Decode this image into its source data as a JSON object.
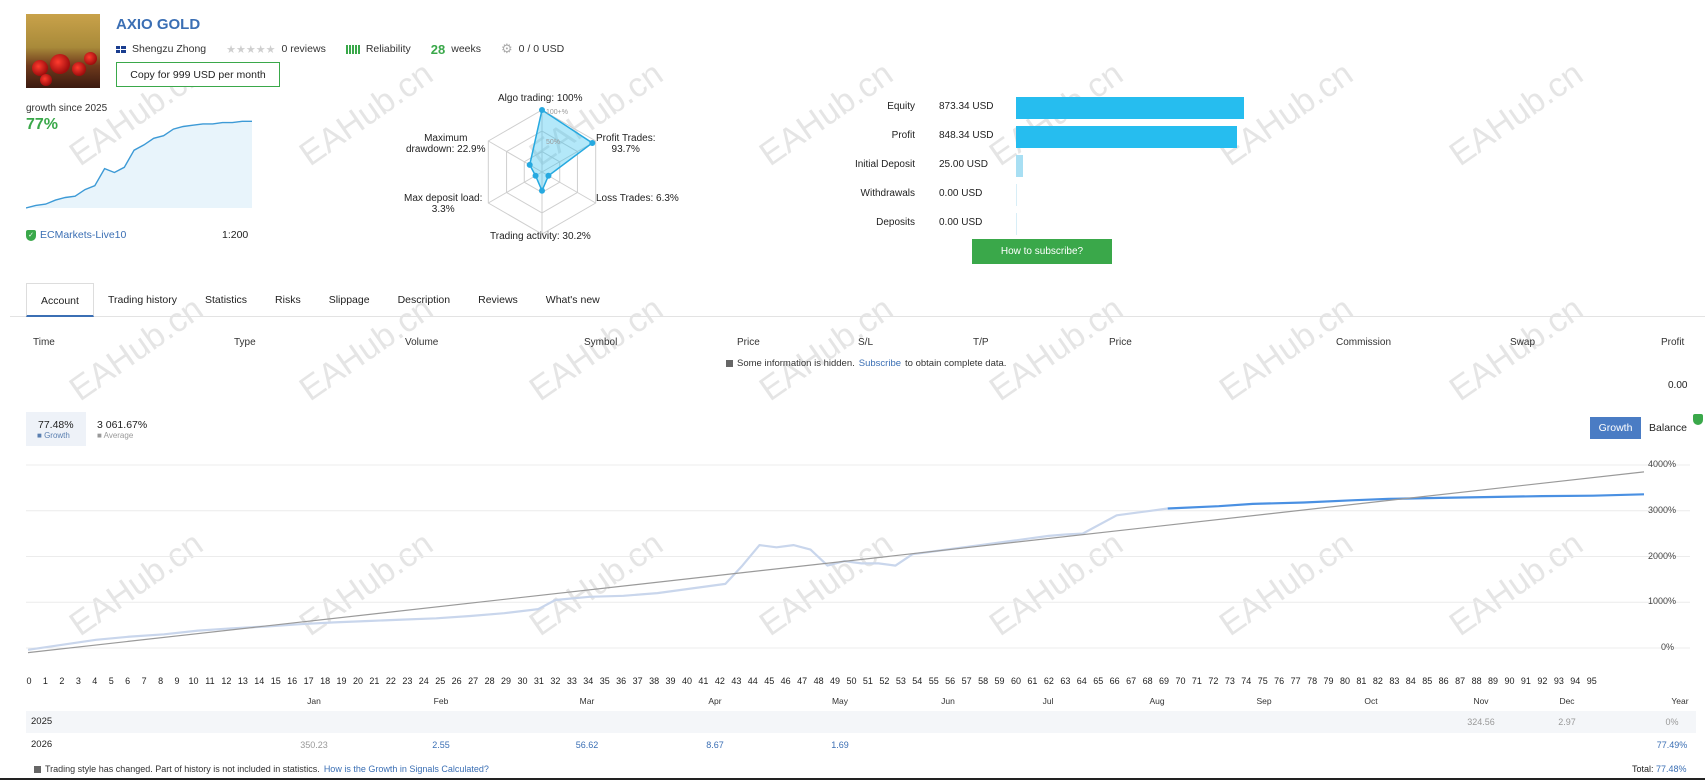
{
  "signal": {
    "title": "AXIO GOLD",
    "author": "Shengzu Zhong",
    "reviews": "0 reviews",
    "reliability_label": "Reliability",
    "weeks_num": "28",
    "weeks_label": "weeks",
    "subscribers": "0 / 0 USD",
    "copy_button": "Copy for 999 USD per month"
  },
  "summary": {
    "growth_label": "growth since 2025",
    "growth_pct": "77%",
    "broker": "ECMarkets-Live10",
    "leverage": "1:200",
    "sparkline": [
      0,
      2,
      3,
      6,
      8,
      9,
      14,
      17,
      30,
      27,
      31,
      44,
      48,
      53,
      55,
      60,
      62,
      63,
      64,
      64,
      65,
      65,
      66,
      66
    ]
  },
  "radar": {
    "algo": "Algo trading: 100%",
    "profit_trades_1": "Profit Trades:",
    "profit_trades_2": "93.7%",
    "loss_trades": "Loss Trades: 6.3%",
    "activity": "Trading activity: 30.2%",
    "deposit_load_1": "Max deposit load:",
    "deposit_load_2": "3.3%",
    "drawdown_1": "Maximum",
    "drawdown_2": "drawdown: 22.9%",
    "ring_100": "100+%",
    "ring_50": "50%",
    "values": {
      "algo": 100,
      "profit": 93.7,
      "loss": 6.3,
      "activity": 30.2,
      "deposit_load": 3.3,
      "drawdown": 22.9
    }
  },
  "stats": [
    {
      "label": "Equity",
      "value": "873.34 USD",
      "amount": 873.34
    },
    {
      "label": "Profit",
      "value": "848.34 USD",
      "amount": 848.34
    },
    {
      "label": "Initial Deposit",
      "value": "25.00 USD",
      "amount": 25.0
    },
    {
      "label": "Withdrawals",
      "value": "0.00 USD",
      "amount": 0
    },
    {
      "label": "Deposits",
      "value": "0.00 USD",
      "amount": 0
    }
  ],
  "subscribe_button": "How to subscribe?",
  "tabs": [
    "Account",
    "Trading history",
    "Statistics",
    "Risks",
    "Slippage",
    "Description",
    "Reviews",
    "What's new"
  ],
  "table": {
    "columns": [
      "Time",
      "Type",
      "Volume",
      "Symbol",
      "Price",
      "S/L",
      "T/P",
      "Price",
      "Commission",
      "Swap",
      "Profit"
    ],
    "hidden_note_pre": "Some information is hidden.",
    "hidden_note_link": "Subscribe",
    "hidden_note_post": "to obtain complete data.",
    "profit_total": "0.00"
  },
  "chart_legend": {
    "growth_value": "77.48%",
    "growth_label": "Growth",
    "average_value": "3 061.67%",
    "average_label": "Average"
  },
  "toggle": {
    "growth": "Growth",
    "balance": "Balance"
  },
  "chart_data": {
    "type": "line",
    "y_ticks": [
      "4000%",
      "3000%",
      "2000%",
      "1000%",
      "0%"
    ],
    "ylim": [
      0,
      4000
    ],
    "xlim": [
      0,
      95
    ],
    "x_ticks": [
      "0",
      "1",
      "2",
      "3",
      "4",
      "5",
      "6",
      "7",
      "8",
      "9",
      "10",
      "11",
      "12",
      "13",
      "14",
      "15",
      "16",
      "17",
      "18",
      "19",
      "20",
      "21",
      "22",
      "23",
      "24",
      "25",
      "26",
      "27",
      "28",
      "29",
      "30",
      "31",
      "32",
      "33",
      "34",
      "35",
      "36",
      "37",
      "38",
      "39",
      "40",
      "41",
      "42",
      "43",
      "44",
      "45",
      "46",
      "47",
      "48",
      "49",
      "50",
      "51",
      "52",
      "53",
      "54",
      "55",
      "56",
      "57",
      "58",
      "59",
      "60",
      "61",
      "62",
      "63",
      "64",
      "65",
      "66",
      "67",
      "68",
      "69",
      "70",
      "71",
      "72",
      "73",
      "74",
      "75",
      "76",
      "77",
      "78",
      "79",
      "80",
      "81",
      "82",
      "83",
      "84",
      "85",
      "86",
      "87",
      "88",
      "89",
      "90",
      "91",
      "92",
      "93",
      "94",
      "95"
    ],
    "series": [
      {
        "name": "Growth",
        "color": "#c9d6ec",
        "x": [
          0,
          2,
          4,
          6,
          8,
          10,
          12,
          14,
          16,
          18,
          20,
          22,
          24,
          26,
          28,
          30,
          31,
          33,
          35,
          37,
          39,
          41,
          42,
          43,
          44,
          45,
          46,
          47,
          48,
          49,
          50,
          51,
          52,
          54,
          56,
          58,
          60,
          61,
          62,
          64,
          66,
          67
        ],
        "y": [
          -40,
          70,
          180,
          250,
          300,
          380,
          430,
          470,
          520,
          560,
          590,
          620,
          650,
          700,
          760,
          850,
          1050,
          1120,
          1140,
          1200,
          1300,
          1400,
          1800,
          2250,
          2200,
          2250,
          2150,
          1800,
          1900,
          1850,
          1850,
          1800,
          2050,
          2150,
          2250,
          2350,
          2450,
          2480,
          2500,
          2900,
          3000,
          3050
        ]
      },
      {
        "name": "Growth (highlighted)",
        "color": "#4a90e2",
        "x": [
          67,
          70,
          72,
          75,
          78,
          80,
          83,
          86,
          89,
          92,
          95
        ],
        "y": [
          3050,
          3100,
          3150,
          3180,
          3230,
          3260,
          3280,
          3300,
          3320,
          3330,
          3360
        ]
      },
      {
        "name": "Average",
        "color": "#9a9a9a",
        "x": [
          0,
          95
        ],
        "y": [
          -100,
          3850
        ]
      }
    ]
  },
  "months": [
    "Jan",
    "Feb",
    "Mar",
    "Apr",
    "May",
    "Jun",
    "Jul",
    "Aug",
    "Sep",
    "Oct",
    "Nov",
    "Dec",
    "Year"
  ],
  "years": [
    {
      "year": "2025",
      "cells": {
        "Nov": "324.56",
        "Dec": "2.97",
        "Year": "0%"
      }
    },
    {
      "year": "2026",
      "cells": {
        "Jan": "350.23",
        "Feb": "2.55",
        "Mar": "56.62",
        "Apr": "8.67",
        "May": "1.69",
        "Year": "77.49%"
      }
    }
  ],
  "footer": {
    "note": "Trading style has changed. Part of history is not included in statistics.",
    "link": "How is the Growth in Signals Calculated?",
    "total_label": "Total:",
    "total_value": "77.48%"
  },
  "watermark": "EAHub.cn"
}
